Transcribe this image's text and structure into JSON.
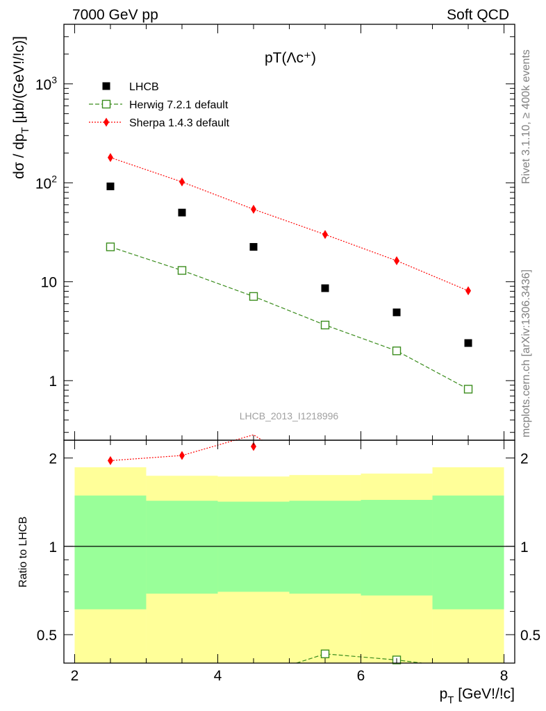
{
  "header": {
    "left": "7000 GeV pp",
    "right": "Soft QCD"
  },
  "side_labels": {
    "top": "Rivet 3.1.10, ≥ 400k events",
    "bottom": "mcplots.cern.ch [arXiv:1306.3436]"
  },
  "chart_data": [
    {
      "type": "scatter",
      "title": "pT(Λc⁺)",
      "ylabel": "dσ / dp_T [μb/(GeV!/!c)]",
      "yscale": "log",
      "xlim": [
        1.85,
        8.15
      ],
      "ylim": [
        0.25,
        4000
      ],
      "yticks": [
        {
          "value": 1,
          "label": "1"
        },
        {
          "value": 10,
          "label": "10"
        },
        {
          "value": 100,
          "label": "10²"
        },
        {
          "value": 1000,
          "label": "10³"
        }
      ],
      "legend_position": "top-left",
      "watermark": "LHCB_2013_I1218996",
      "series": [
        {
          "name": "LHCB",
          "style": "data-square",
          "color": "#000000",
          "x": [
            2.5,
            3.5,
            4.5,
            5.5,
            6.5,
            7.5
          ],
          "y": [
            92,
            50,
            22.5,
            8.6,
            4.9,
            2.4
          ]
        },
        {
          "name": "Herwig 7.2.1 default",
          "style": "open-square-dashed",
          "color": "#3a8c1c",
          "x": [
            2.5,
            3.5,
            4.5,
            5.5,
            6.5,
            7.5
          ],
          "y": [
            22.5,
            13,
            7.1,
            3.65,
            2.0,
            0.82
          ]
        },
        {
          "name": "Sherpa 1.4.3 default",
          "style": "diamond-dotted",
          "color": "#ff0000",
          "x": [
            2.5,
            3.5,
            4.5,
            5.5,
            6.5,
            7.5
          ],
          "y": [
            180,
            102,
            54,
            30,
            16.3,
            8.1
          ]
        }
      ]
    },
    {
      "type": "area",
      "ylabel": "Ratio to LHCB",
      "xlabel": "p_T [GeV!/!c]",
      "yscale": "log",
      "xlim": [
        1.85,
        8.15
      ],
      "ylim": [
        0.4,
        2.3
      ],
      "xticks": [
        2,
        4,
        6,
        8
      ],
      "yticks": [
        {
          "value": 0.5,
          "label": "0.5"
        },
        {
          "value": 1,
          "label": "1"
        },
        {
          "value": 2,
          "label": "2"
        }
      ],
      "bin_edges": [
        2,
        3,
        4,
        5,
        6,
        7,
        8
      ],
      "band_outer": {
        "color": "#ffff99",
        "low": [
          0.4,
          0.4,
          0.4,
          0.4,
          0.4,
          0.4
        ],
        "high": [
          1.86,
          1.74,
          1.73,
          1.75,
          1.77,
          1.86
        ]
      },
      "band_inner": {
        "color": "#99ff99",
        "low": [
          0.61,
          0.69,
          0.7,
          0.69,
          0.68,
          0.61
        ],
        "high": [
          1.49,
          1.43,
          1.42,
          1.43,
          1.44,
          1.49
        ]
      },
      "series": [
        {
          "name": "Sherpa 1.4.3 default",
          "style": "diamond-dotted",
          "color": "#ff0000",
          "x": [
            2.5,
            3.5,
            4.5
          ],
          "y": [
            1.96,
            2.04,
            2.4
          ]
        },
        {
          "name": "Herwig 7.2.1 default",
          "style": "open-square-dashed",
          "color": "#3a8c1c",
          "x": [
            5.5,
            6.5
          ],
          "y": [
            0.43,
            0.41
          ]
        }
      ]
    }
  ]
}
